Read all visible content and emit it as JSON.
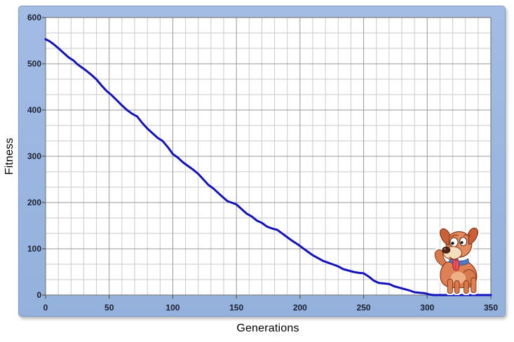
{
  "colors": {
    "frame_background": "#97b4de",
    "plot_background": "#ffffff",
    "minor_gridline": "#cacaca",
    "major_gridline": "#979797",
    "plot_border": "#7f7f7f",
    "series_line": "#1313bb",
    "tick_text": "#1c2130",
    "axis_title_text": "#000000"
  },
  "chart_data": {
    "type": "line",
    "title": "",
    "xlabel": "Generations",
    "ylabel": "Fitness",
    "xlim": [
      0,
      350
    ],
    "ylim": [
      0,
      600
    ],
    "x_ticks": [
      0,
      50,
      100,
      150,
      200,
      250,
      300,
      350
    ],
    "y_ticks": [
      0,
      100,
      200,
      300,
      400,
      500,
      600
    ],
    "grid": {
      "enabled": true,
      "x_minor_step": 10,
      "x_major_step": 50,
      "y_minor_step": 33.3333,
      "y_major_step": 100
    },
    "legend": "none",
    "series": [
      {
        "name": "Fitness",
        "color": "#1313bb",
        "x": [
          0,
          3,
          6,
          10,
          14,
          18,
          22,
          25,
          28,
          32,
          36,
          40,
          44,
          48,
          52,
          56,
          60,
          64,
          68,
          72,
          76,
          80,
          84,
          88,
          92,
          96,
          100,
          104,
          108,
          112,
          116,
          120,
          124,
          128,
          132,
          136,
          140,
          143,
          146,
          150,
          154,
          158,
          162,
          166,
          170,
          174,
          178,
          182,
          186,
          190,
          194,
          198,
          202,
          206,
          210,
          214,
          218,
          222,
          226,
          230,
          234,
          238,
          242,
          246,
          250,
          254,
          258,
          262,
          266,
          270,
          274,
          278,
          282,
          286,
          290,
          294,
          298,
          302,
          305,
          310,
          320,
          330,
          340,
          350
        ],
        "y": [
          553,
          549,
          543,
          534,
          524,
          514,
          507,
          499,
          493,
          485,
          476,
          466,
          453,
          441,
          432,
          421,
          410,
          400,
          392,
          386,
          372,
          360,
          350,
          340,
          333,
          320,
          305,
          297,
          287,
          279,
          271,
          262,
          250,
          238,
          230,
          220,
          210,
          203,
          200,
          196,
          186,
          176,
          170,
          161,
          156,
          148,
          144,
          141,
          133,
          125,
          117,
          110,
          102,
          94,
          86,
          80,
          74,
          70,
          66,
          62,
          56,
          53,
          50,
          48,
          47,
          40,
          31,
          26,
          25,
          24,
          19,
          16,
          13,
          10,
          6,
          5,
          4,
          1,
          0,
          0,
          0,
          0,
          0,
          0
        ]
      }
    ],
    "annotations": [
      {
        "type": "image",
        "name": "cartoon-dog",
        "description": "Cartoon brown puppy with tongue out standing near the end of the curve",
        "x_range": [
          303,
          344
        ],
        "y_range": [
          0,
          150
        ]
      }
    ]
  }
}
